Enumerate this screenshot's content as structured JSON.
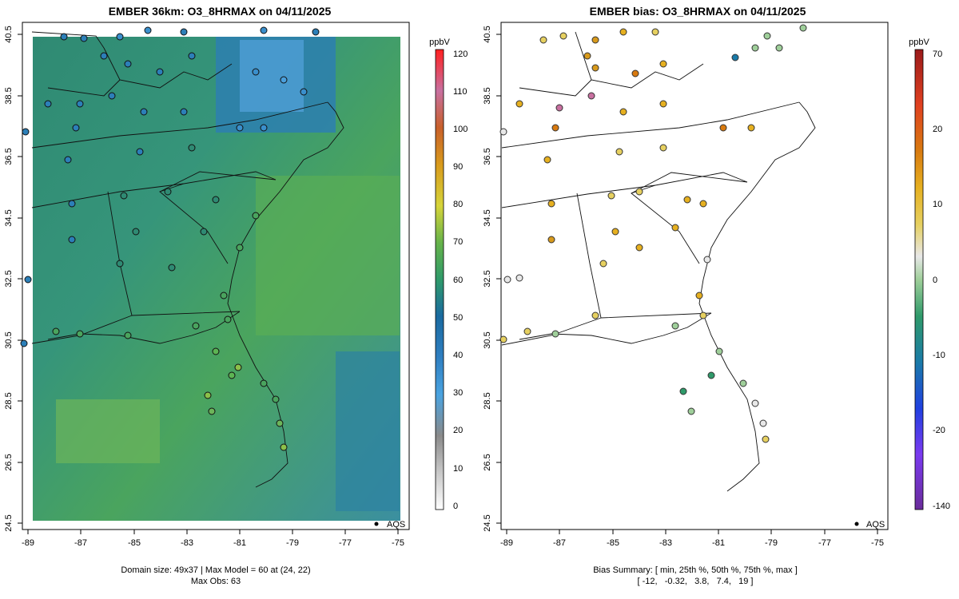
{
  "left": {
    "title": "EMBER 36km: O3_8HRMAX on 04/11/2025",
    "legend_label": "AQS",
    "colorbar_unit": "ppbV",
    "colorbar_ticks": [
      "0",
      "10",
      "20",
      "30",
      "40",
      "50",
      "60",
      "70",
      "80",
      "90",
      "100",
      "110",
      "120"
    ],
    "footer_line1": "Domain size: 49x37 | Max Model = 60 at (24, 22)",
    "footer_line2": "Max Obs: 63"
  },
  "right": {
    "title": "EMBER bias: O3_8HRMAX on 04/11/2025",
    "legend_label": "AQS",
    "colorbar_unit": "ppbV",
    "colorbar_ticks": [
      "-140",
      "-20",
      "-10",
      "0",
      "10",
      "20",
      "70"
    ],
    "footer_line1": "Bias Summary: [ min, 25th %, 50th %, 75th %, max ]",
    "footer_line2": "[ -12,   -0.32,   3.8,   7.4,   19 ]"
  },
  "axes": {
    "x_ticks": [
      "-89",
      "-87",
      "-85",
      "-83",
      "-81",
      "-79",
      "-77",
      "-75"
    ],
    "y_ticks": [
      "24.5",
      "26.5",
      "28.5",
      "30.5",
      "32.5",
      "34.5",
      "36.5",
      "38.5",
      "40.5"
    ]
  },
  "colors": {
    "model_field": [
      "#3f9d5a",
      "#2f8a73",
      "#4aa45e",
      "#5db453",
      "#2c7fa6",
      "#3e93c9"
    ],
    "bias_pos": "#d89a1c",
    "bias_neg": "#2f9a6a"
  }
}
